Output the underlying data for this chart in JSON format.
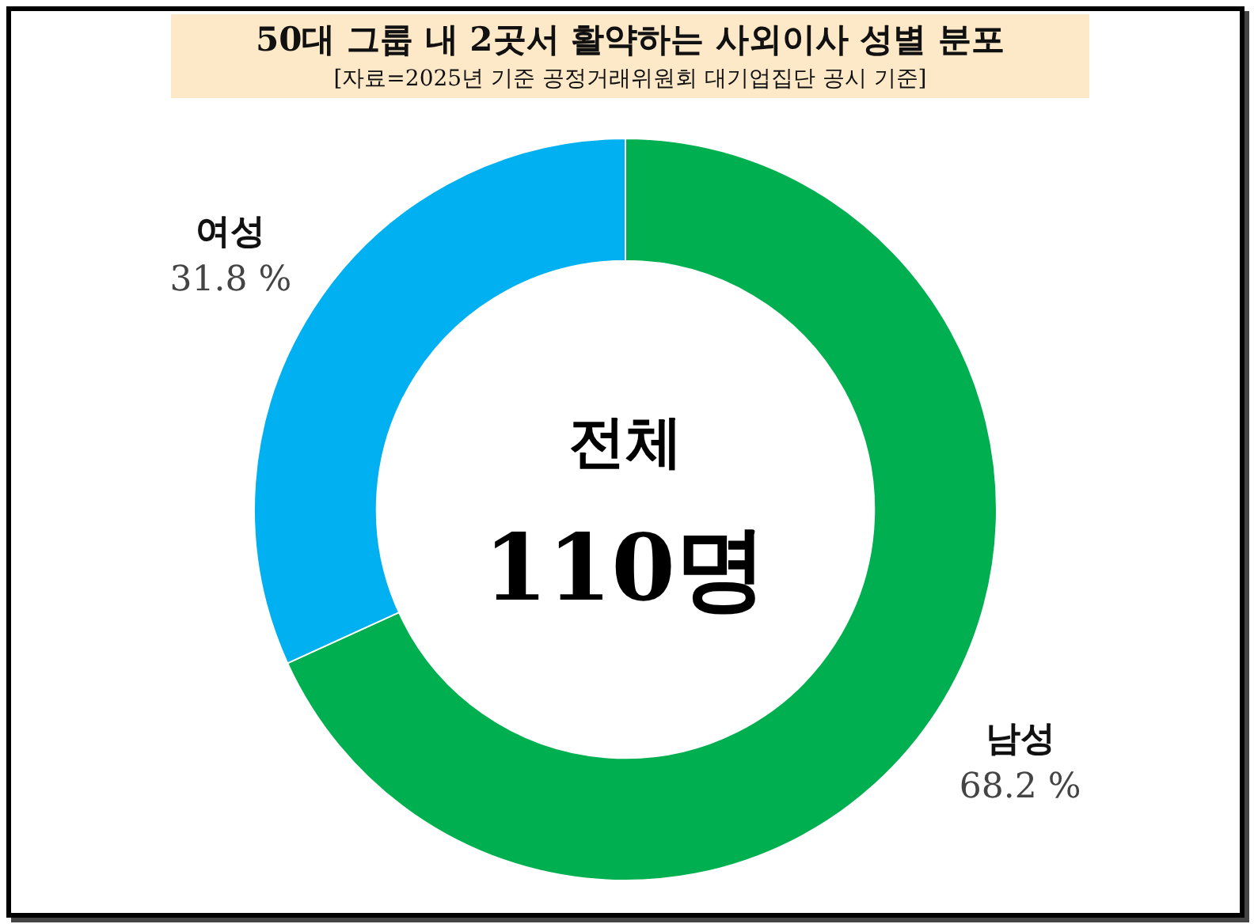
{
  "chart_data": {
    "type": "donut",
    "title": "50대 그룹 내 2곳서 활약하는 사외이사 성별 분포",
    "subtitle": "[자료=2025년 기준 공정거래위원회 대기업집단 공시 기준]",
    "categories": [
      "남성",
      "여성"
    ],
    "values": [
      68.2,
      31.8
    ],
    "colors": [
      "#00b050",
      "#00b0f0"
    ],
    "value_labels": [
      "68.2 %",
      "31.8 %"
    ],
    "annotations": [
      "전체",
      "110명"
    ],
    "legend": false
  }
}
